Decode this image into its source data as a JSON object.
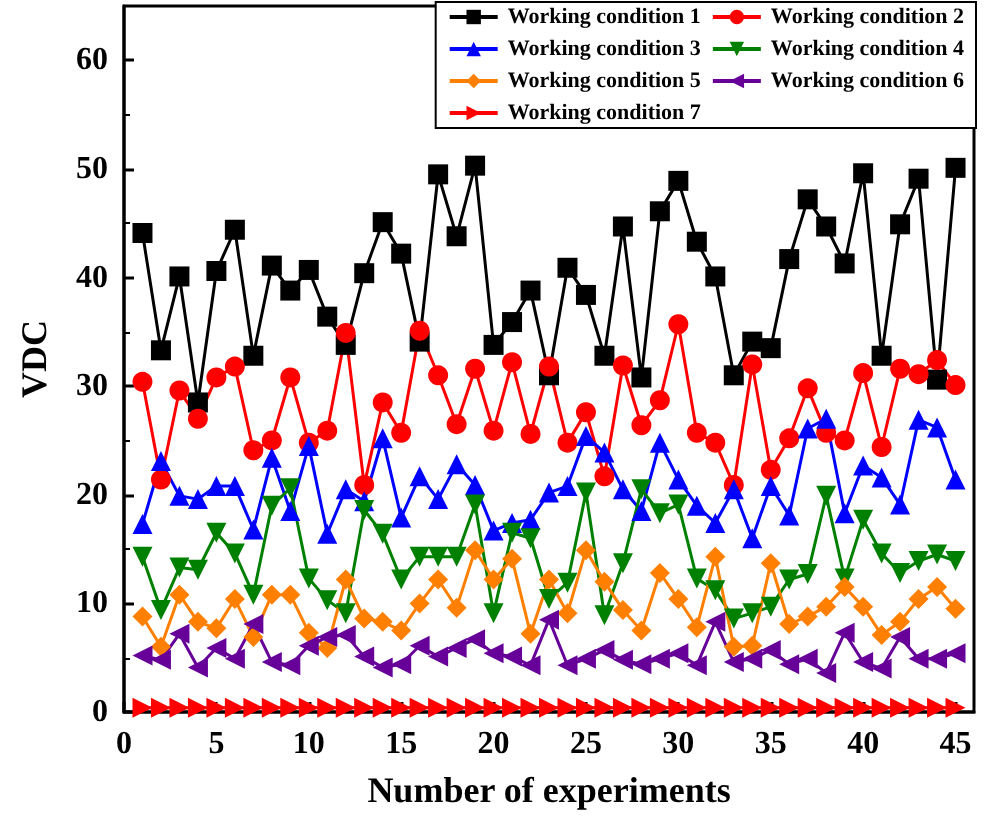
{
  "chart_data": {
    "type": "line",
    "xlabel": "Number of experiments",
    "ylabel": "VDC",
    "x": [
      1,
      2,
      3,
      4,
      5,
      6,
      7,
      8,
      9,
      10,
      11,
      12,
      13,
      14,
      15,
      16,
      17,
      18,
      19,
      20,
      21,
      22,
      23,
      24,
      25,
      26,
      27,
      28,
      29,
      30,
      31,
      32,
      33,
      34,
      35,
      36,
      37,
      38,
      39,
      40,
      41,
      42,
      43,
      44,
      45
    ],
    "xlim": [
      0,
      46
    ],
    "xticks": [
      0,
      5,
      10,
      15,
      20,
      25,
      30,
      35,
      40,
      45
    ],
    "ylim": [
      0,
      65
    ],
    "yticks": [
      0,
      10,
      20,
      30,
      40,
      50,
      60
    ],
    "grid": false,
    "legend": "top right",
    "line_style": "solid",
    "series": [
      {
        "name": "Working condition 1",
        "color": "#000000",
        "marker": "square",
        "values": [
          44.1,
          33.3,
          40.1,
          28.5,
          40.6,
          44.4,
          32.8,
          41.1,
          38.8,
          40.7,
          36.4,
          33.8,
          40.4,
          45.1,
          42.2,
          34.1,
          49.5,
          43.8,
          50.3,
          33.8,
          35.9,
          38.8,
          31.0,
          40.9,
          38.4,
          32.8,
          44.7,
          30.8,
          46.1,
          48.9,
          43.3,
          40.1,
          31.0,
          34.1,
          33.5,
          41.7,
          47.2,
          44.7,
          41.3,
          49.6,
          32.8,
          44.9,
          49.1,
          30.6,
          50.1
        ]
      },
      {
        "name": "Working condition 2",
        "color": "#ff0000",
        "marker": "circle",
        "values": [
          30.4,
          21.4,
          29.6,
          27.0,
          30.8,
          31.8,
          24.1,
          25.0,
          30.8,
          24.8,
          25.9,
          34.9,
          20.9,
          28.5,
          25.7,
          35.1,
          31.0,
          26.5,
          31.6,
          25.9,
          32.2,
          25.6,
          31.8,
          24.8,
          27.6,
          21.7,
          31.9,
          26.4,
          28.7,
          35.7,
          25.7,
          24.8,
          20.9,
          32.0,
          22.3,
          25.2,
          29.8,
          25.7,
          25.0,
          31.2,
          24.4,
          31.6,
          31.1,
          32.4,
          30.1
        ]
      },
      {
        "name": "Working condition 3",
        "color": "#0000ff",
        "marker": "triangle",
        "values": [
          17.3,
          23.1,
          19.9,
          19.6,
          20.8,
          20.8,
          16.8,
          23.4,
          18.5,
          24.5,
          16.4,
          20.5,
          19.4,
          25.2,
          17.9,
          21.7,
          19.6,
          22.8,
          20.9,
          16.7,
          17.4,
          17.7,
          20.2,
          20.8,
          25.4,
          23.9,
          20.5,
          18.5,
          24.8,
          21.4,
          19.0,
          17.4,
          20.5,
          16.0,
          20.8,
          18.1,
          26.1,
          27.0,
          18.3,
          22.7,
          21.6,
          19.1,
          26.9,
          26.2,
          21.4
        ]
      },
      {
        "name": "Working condition 4",
        "color": "#008000",
        "marker": "triangle-down",
        "values": [
          14.3,
          9.4,
          13.3,
          13.1,
          16.5,
          14.6,
          10.8,
          19.0,
          20.6,
          12.3,
          10.3,
          9.1,
          18.6,
          16.4,
          12.2,
          14.3,
          14.3,
          14.3,
          19.1,
          9.1,
          16.5,
          16.0,
          10.4,
          11.9,
          20.2,
          8.9,
          13.7,
          20.5,
          18.3,
          19.1,
          12.3,
          11.2,
          8.6,
          9.1,
          9.7,
          12.2,
          12.7,
          19.9,
          12.3,
          17.7,
          14.6,
          12.8,
          13.9,
          14.5,
          13.9
        ]
      },
      {
        "name": "Working condition 5",
        "color": "#ff8000",
        "marker": "diamond",
        "values": [
          8.8,
          6.0,
          10.8,
          8.3,
          7.7,
          10.4,
          6.9,
          10.8,
          10.8,
          7.3,
          5.9,
          12.2,
          8.6,
          8.3,
          7.5,
          10.0,
          12.2,
          9.6,
          14.9,
          12.2,
          14.1,
          7.2,
          12.2,
          9.1,
          14.9,
          12.0,
          9.4,
          7.5,
          12.8,
          10.4,
          7.8,
          14.3,
          6.0,
          6.1,
          13.7,
          8.1,
          8.8,
          9.7,
          11.5,
          9.7,
          7.1,
          8.3,
          10.4,
          11.5,
          9.5
        ]
      },
      {
        "name": "Working condition 6",
        "color": "#660099",
        "marker": "triangle-left",
        "values": [
          5.2,
          4.8,
          7.2,
          4.1,
          5.9,
          4.9,
          8.1,
          4.6,
          4.3,
          6.1,
          6.9,
          7.1,
          5.1,
          4.1,
          4.4,
          6.1,
          5.1,
          5.9,
          6.7,
          5.4,
          5.1,
          4.3,
          8.5,
          4.3,
          4.9,
          5.7,
          4.8,
          4.4,
          4.9,
          5.4,
          4.3,
          8.3,
          4.6,
          4.9,
          5.7,
          4.4,
          4.9,
          3.6,
          7.3,
          4.6,
          4.0,
          6.9,
          4.9,
          4.9,
          5.4
        ]
      },
      {
        "name": "Working condition 7",
        "color": "#ff0000",
        "marker": "triangle-right",
        "values": [
          0.4,
          0.4,
          0.4,
          0.4,
          0.4,
          0.4,
          0.4,
          0.4,
          0.4,
          0.4,
          0.4,
          0.4,
          0.4,
          0.4,
          0.4,
          0.4,
          0.4,
          0.4,
          0.4,
          0.4,
          0.4,
          0.4,
          0.4,
          0.4,
          0.4,
          0.4,
          0.4,
          0.4,
          0.4,
          0.4,
          0.4,
          0.4,
          0.4,
          0.4,
          0.4,
          0.4,
          0.4,
          0.4,
          0.4,
          0.4,
          0.4,
          0.4,
          0.4,
          0.4,
          0.4
        ]
      }
    ]
  }
}
